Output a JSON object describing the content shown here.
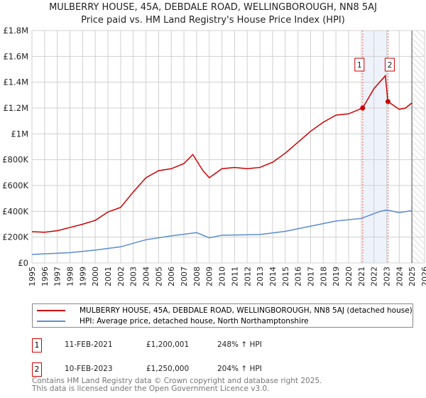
{
  "chart_data": {
    "type": "line",
    "title": "MULBERRY HOUSE, 45A, DEBDALE ROAD, WELLINGBOROUGH, NN8 5AJ",
    "subtitle": "Price paid vs. HM Land Registry's House Price Index (HPI)",
    "xlim": [
      1995,
      2026
    ],
    "ylim": [
      0,
      1800000
    ],
    "x_ticks": [
      "1995",
      "1996",
      "1997",
      "1998",
      "1999",
      "2000",
      "2001",
      "2002",
      "2003",
      "2004",
      "2005",
      "2006",
      "2007",
      "2008",
      "2009",
      "2010",
      "2011",
      "2012",
      "2013",
      "2014",
      "2015",
      "2016",
      "2017",
      "2018",
      "2019",
      "2020",
      "2021",
      "2022",
      "2023",
      "2024",
      "2025",
      "2026"
    ],
    "y_ticks": [
      {
        "v": 0,
        "label": "£0"
      },
      {
        "v": 200000,
        "label": "£200K"
      },
      {
        "v": 400000,
        "label": "£400K"
      },
      {
        "v": 600000,
        "label": "£600K"
      },
      {
        "v": 800000,
        "label": "£800K"
      },
      {
        "v": 1000000,
        "label": "£1M"
      },
      {
        "v": 1200000,
        "label": "£1.2M"
      },
      {
        "v": 1400000,
        "label": "£1.4M"
      },
      {
        "v": 1600000,
        "label": "£1.6M"
      },
      {
        "v": 1800000,
        "label": "£1.8M"
      }
    ],
    "grid": true,
    "series": [
      {
        "name": "MULBERRY HOUSE, 45A, DEBDALE ROAD, WELLINGBOROUGH, NN8 5AJ (detached house)",
        "color": "#cc0000",
        "x": [
          1995,
          1996,
          1997,
          1998,
          1999,
          2000,
          2001,
          2002,
          2003,
          2004,
          2005,
          2006,
          2007,
          2007.7,
          2008.5,
          2009,
          2010,
          2011,
          2012,
          2013,
          2014,
          2015,
          2016,
          2017,
          2018,
          2019,
          2020,
          2021.11,
          2022,
          2022.9,
          2023.11,
          2024,
          2024.5,
          2025
        ],
        "values": [
          242000,
          238000,
          250000,
          275000,
          300000,
          330000,
          395000,
          430000,
          550000,
          660000,
          715000,
          730000,
          770000,
          840000,
          715000,
          660000,
          730000,
          740000,
          730000,
          740000,
          780000,
          850000,
          935000,
          1020000,
          1090000,
          1145000,
          1155000,
          1200001,
          1350000,
          1450000,
          1250000,
          1190000,
          1200000,
          1240000
        ]
      },
      {
        "name": "HPI: Average price, detached house, North Northamptonshire",
        "color": "#5b8bd0",
        "x": [
          1995,
          1998,
          2000,
          2002,
          2004,
          2006,
          2008,
          2009,
          2010,
          2013,
          2015,
          2017,
          2019,
          2021,
          2022.5,
          2023,
          2024,
          2025
        ],
        "values": [
          66000,
          80000,
          100000,
          125000,
          180000,
          210000,
          235000,
          195000,
          215000,
          220000,
          245000,
          285000,
          325000,
          345000,
          400000,
          410000,
          390000,
          405000
        ]
      }
    ],
    "annotations": [
      {
        "label": "1",
        "x": 2021.11,
        "y": 1200001
      },
      {
        "label": "2",
        "x": 2023.11,
        "y": 1250000
      }
    ],
    "shaded_span": [
      2021.11,
      2023.11
    ],
    "hatched_from": 2025
  },
  "transactions": [
    {
      "num": "1",
      "date": "11-FEB-2021",
      "price": "£1,200,001",
      "hpi": "248% ↑ HPI"
    },
    {
      "num": "2",
      "date": "10-FEB-2023",
      "price": "£1,250,000",
      "hpi": "204% ↑ HPI"
    }
  ],
  "footer": {
    "line1": "Contains HM Land Registry data © Crown copyright and database right 2025.",
    "line2": "This data is licensed under the Open Government Licence v3.0."
  }
}
